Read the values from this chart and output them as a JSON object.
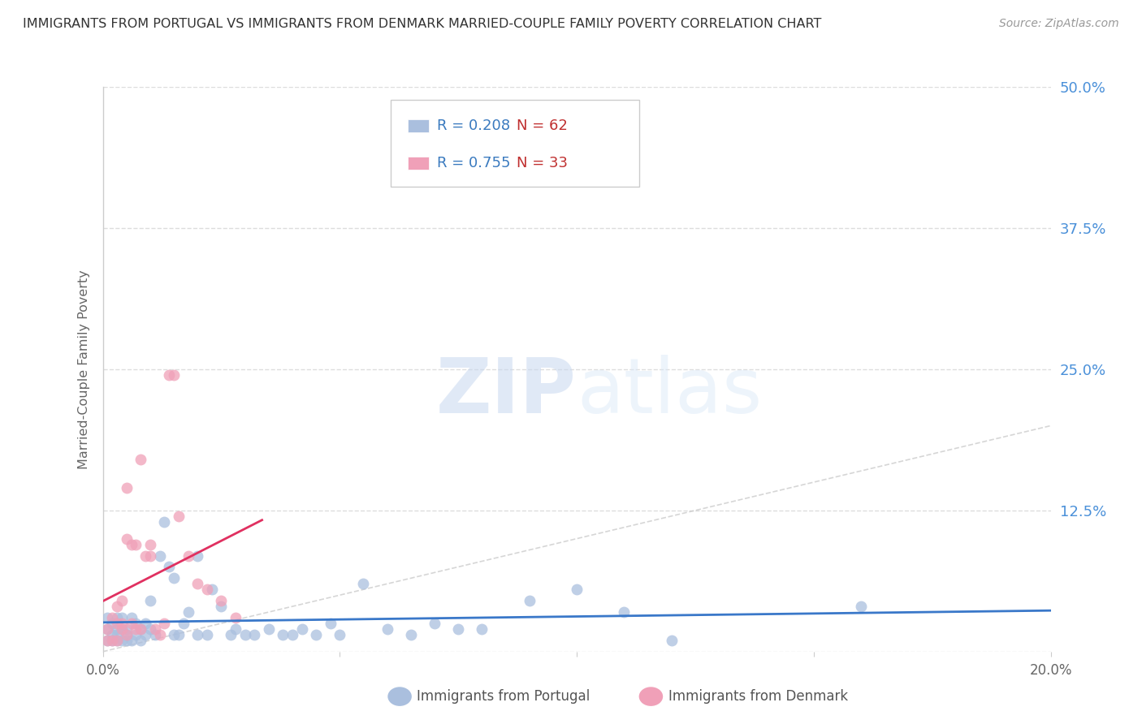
{
  "title": "IMMIGRANTS FROM PORTUGAL VS IMMIGRANTS FROM DENMARK MARRIED-COUPLE FAMILY POVERTY CORRELATION CHART",
  "source": "Source: ZipAtlas.com",
  "ylabel": "Married-Couple Family Poverty",
  "watermark_zip": "ZIP",
  "watermark_atlas": "atlas",
  "xlim": [
    0.0,
    0.2
  ],
  "ylim": [
    0.0,
    0.5
  ],
  "yticks_right": [
    0.125,
    0.25,
    0.375,
    0.5
  ],
  "ytick_labels_right": [
    "12.5%",
    "25.0%",
    "37.5%",
    "50.0%"
  ],
  "series1_label": "Immigrants from Portugal",
  "series2_label": "Immigrants from Denmark",
  "series1_color": "#aabfde",
  "series2_color": "#f0a0b8",
  "series1_R": "0.208",
  "series1_N": "62",
  "series2_R": "0.755",
  "series2_N": "33",
  "legend_R_color": "#3a7abf",
  "legend_N_color": "#c03030",
  "background_color": "#ffffff",
  "grid_color": "#dddddd",
  "title_color": "#333333",
  "ylabel_color": "#666666",
  "ytick_right_color": "#4a90d9",
  "ref_line_color": "#cccccc",
  "portugal_line_color": "#3a78c9",
  "denmark_line_color": "#e03060",
  "portugal_x": [
    0.001,
    0.001,
    0.001,
    0.002,
    0.002,
    0.002,
    0.003,
    0.003,
    0.003,
    0.003,
    0.004,
    0.004,
    0.004,
    0.005,
    0.005,
    0.005,
    0.006,
    0.006,
    0.007,
    0.007,
    0.008,
    0.008,
    0.009,
    0.009,
    0.01,
    0.01,
    0.011,
    0.012,
    0.013,
    0.014,
    0.015,
    0.015,
    0.016,
    0.017,
    0.018,
    0.02,
    0.02,
    0.022,
    0.023,
    0.025,
    0.027,
    0.028,
    0.03,
    0.032,
    0.035,
    0.038,
    0.04,
    0.042,
    0.045,
    0.048,
    0.05,
    0.055,
    0.06,
    0.065,
    0.07,
    0.075,
    0.08,
    0.09,
    0.1,
    0.11,
    0.12,
    0.16
  ],
  "portugal_y": [
    0.01,
    0.02,
    0.03,
    0.01,
    0.015,
    0.025,
    0.01,
    0.015,
    0.02,
    0.03,
    0.01,
    0.02,
    0.03,
    0.01,
    0.015,
    0.02,
    0.01,
    0.03,
    0.015,
    0.025,
    0.01,
    0.02,
    0.015,
    0.025,
    0.02,
    0.045,
    0.015,
    0.085,
    0.115,
    0.075,
    0.015,
    0.065,
    0.015,
    0.025,
    0.035,
    0.015,
    0.085,
    0.015,
    0.055,
    0.04,
    0.015,
    0.02,
    0.015,
    0.015,
    0.02,
    0.015,
    0.015,
    0.02,
    0.015,
    0.025,
    0.015,
    0.06,
    0.02,
    0.015,
    0.025,
    0.02,
    0.02,
    0.045,
    0.055,
    0.035,
    0.01,
    0.04
  ],
  "denmark_x": [
    0.001,
    0.001,
    0.002,
    0.002,
    0.003,
    0.003,
    0.003,
    0.004,
    0.004,
    0.004,
    0.005,
    0.005,
    0.005,
    0.006,
    0.006,
    0.007,
    0.007,
    0.008,
    0.008,
    0.009,
    0.01,
    0.01,
    0.011,
    0.012,
    0.013,
    0.014,
    0.015,
    0.016,
    0.018,
    0.02,
    0.022,
    0.025,
    0.028
  ],
  "denmark_y": [
    0.01,
    0.02,
    0.01,
    0.03,
    0.01,
    0.025,
    0.04,
    0.02,
    0.025,
    0.045,
    0.015,
    0.1,
    0.145,
    0.025,
    0.095,
    0.02,
    0.095,
    0.02,
    0.17,
    0.085,
    0.095,
    0.085,
    0.02,
    0.015,
    0.025,
    0.245,
    0.245,
    0.12,
    0.085,
    0.06,
    0.055,
    0.045,
    0.03
  ],
  "marker_size_portugal": 100,
  "marker_size_denmark": 100
}
